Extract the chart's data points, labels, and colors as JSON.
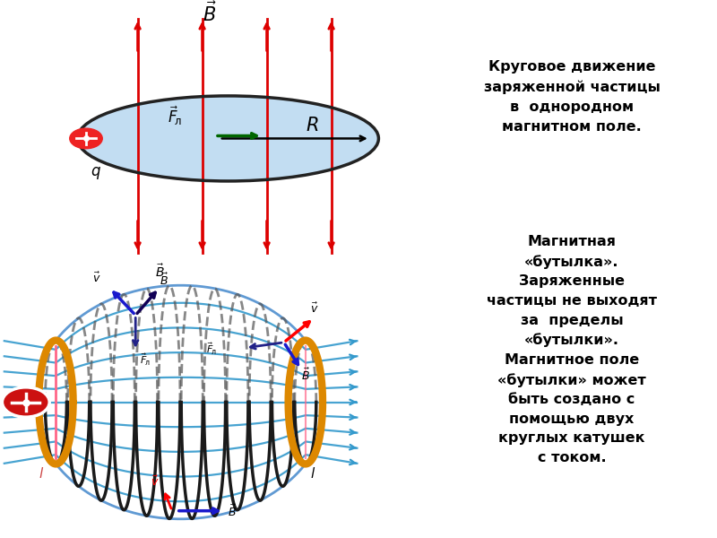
{
  "top_bg": "#d8f0d8",
  "bottom_bg": "#ffffd0",
  "right_bg": "#ffffff",
  "title_text": "Круговое движение\nзаряженной частицы\nв  однородном\nмагнитном поле.",
  "bottle_text": "Магнитная\n«бутылка».\nЗаряженные\nчастицы не выходят\nза  пределы\n«бутылки».\nМагнитное поле\n«бутылки» может\nбыть создано с\nпомощью двух\nкруглых катушек\nс током.",
  "red_arrow_color": "#dd0000",
  "blue_arrow_color": "#1a1acc",
  "dark_blue_color": "#110088",
  "green_arrow_color": "#006600",
  "cyan_color": "#3399cc",
  "orange_color": "#dd8800",
  "particle_color": "#cc0000",
  "helix_color": "#333333",
  "top_bg_hex": "#d8f0d8",
  "bot_bg_hex": "#ffffd0"
}
